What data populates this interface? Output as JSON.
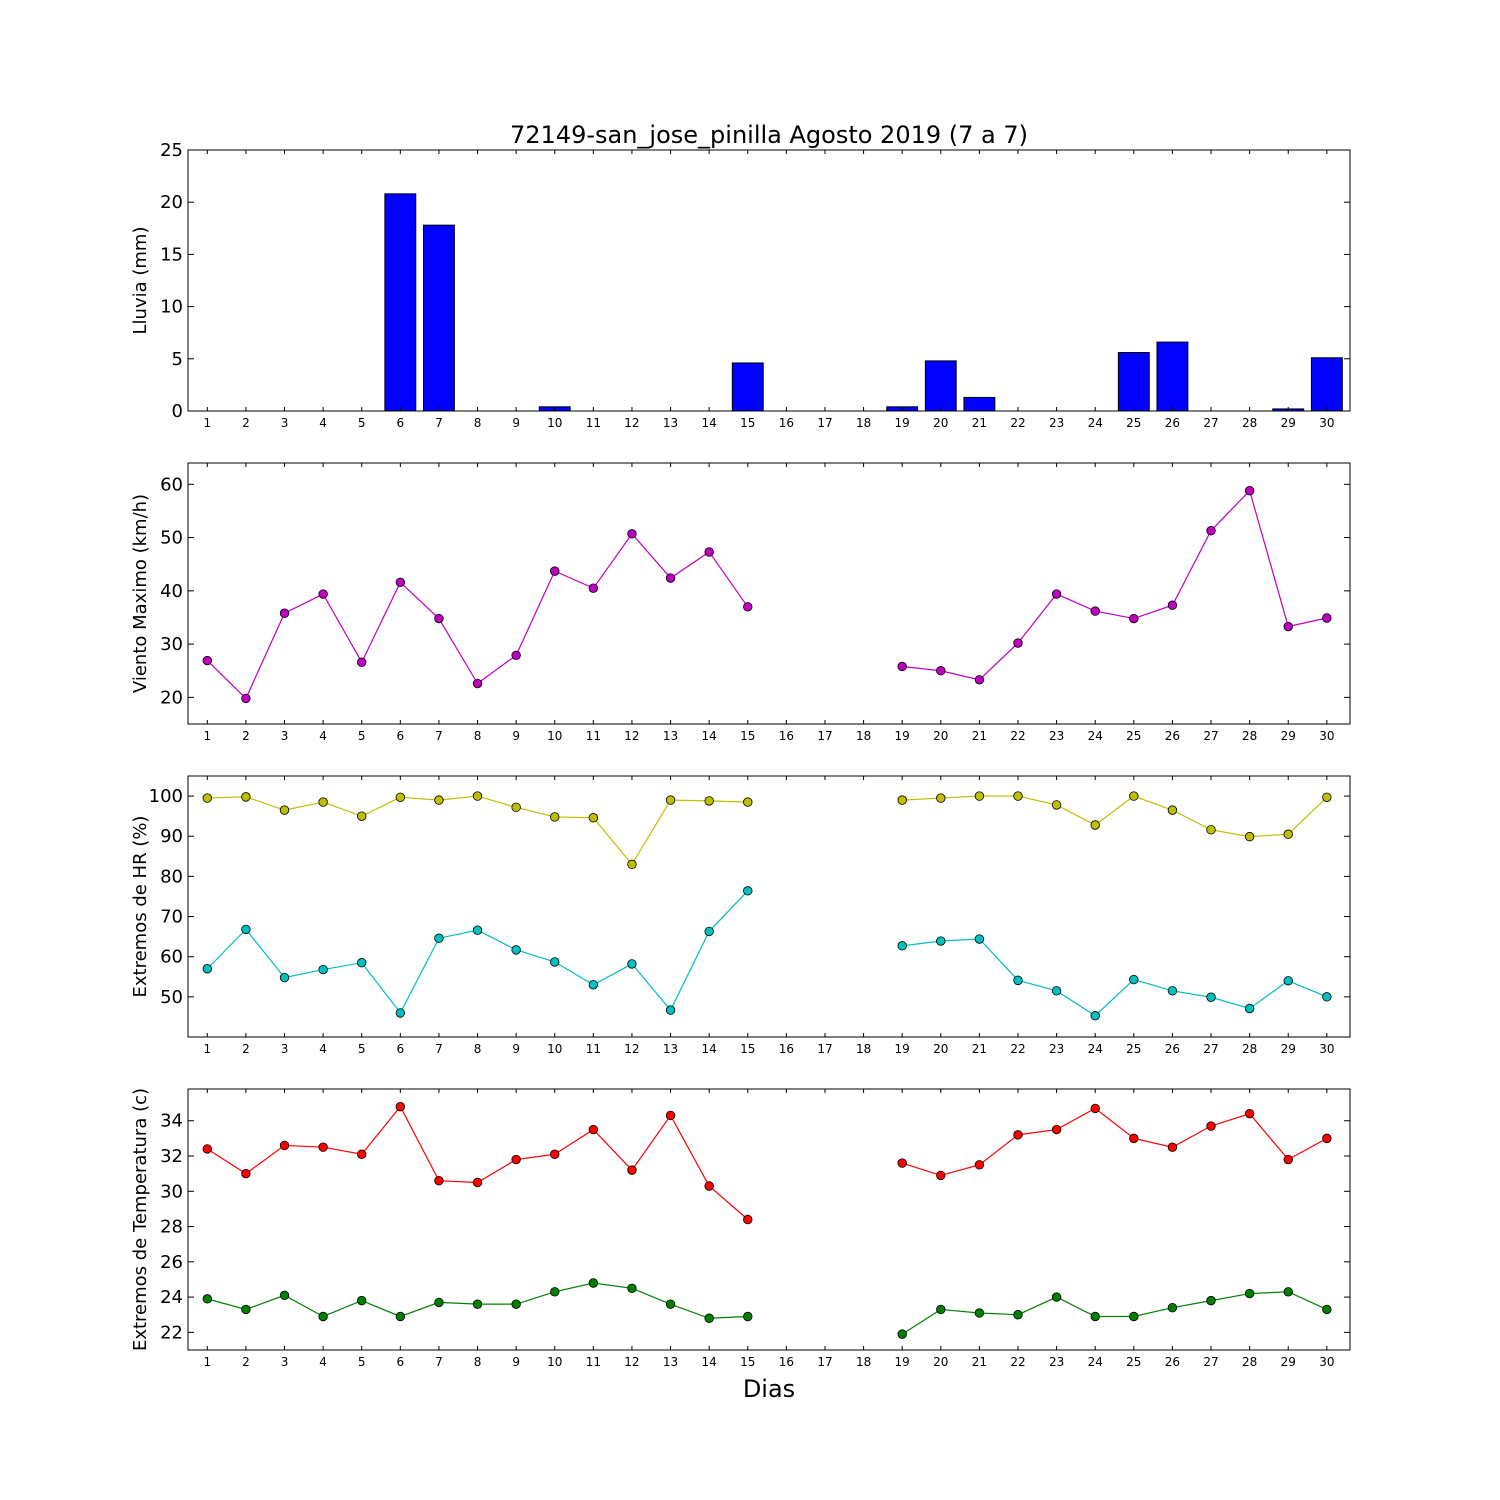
{
  "chart_data": {
    "title": "72149-san_jose_pinilla Agosto 2019  (7 a 7)",
    "xlabel": "Dias",
    "days": [
      1,
      2,
      3,
      4,
      5,
      6,
      7,
      8,
      9,
      10,
      11,
      12,
      13,
      14,
      15,
      16,
      17,
      18,
      19,
      20,
      21,
      22,
      23,
      24,
      25,
      26,
      27,
      28,
      29,
      30
    ],
    "panels": [
      {
        "type": "bar",
        "ylabel": "Lluvia (mm)",
        "ylim": [
          0,
          25
        ],
        "yticks": [
          0,
          5,
          10,
          15,
          20,
          25
        ],
        "series": [
          {
            "color": "#0000ff",
            "values": [
              0,
              0,
              0,
              0,
              0,
              20.8,
              17.8,
              0,
              0,
              0.4,
              0,
              0,
              0,
              0,
              4.6,
              null,
              null,
              null,
              0.4,
              4.8,
              1.3,
              0,
              0,
              0,
              5.6,
              6.6,
              0,
              0,
              0.2,
              5.1
            ]
          }
        ]
      },
      {
        "type": "line",
        "ylabel": "Viento Maximo (km/h)",
        "ylim": [
          15,
          64
        ],
        "yticks": [
          20,
          30,
          40,
          50,
          60
        ],
        "series": [
          {
            "color": "#bf00bf",
            "values": [
              26.9,
              19.8,
              35.8,
              39.4,
              26.6,
              41.6,
              34.8,
              22.6,
              27.9,
              43.7,
              40.5,
              50.7,
              42.4,
              47.3,
              37.0,
              null,
              null,
              null,
              25.8,
              25.0,
              23.3,
              30.2,
              39.4,
              36.2,
              34.8,
              37.3,
              51.3,
              58.8,
              33.3,
              34.9
            ]
          }
        ]
      },
      {
        "type": "line",
        "ylabel": "Extremos de HR (%)",
        "ylim": [
          40,
          105
        ],
        "yticks": [
          50,
          60,
          70,
          80,
          90,
          100
        ],
        "series": [
          {
            "color": "#bfbf00",
            "values": [
              99.5,
              99.8,
              96.5,
              98.5,
              95.0,
              99.7,
              99.0,
              100.0,
              97.2,
              94.8,
              94.6,
              83.0,
              99.0,
              98.8,
              98.5,
              null,
              null,
              null,
              99.0,
              99.5,
              100.0,
              100.0,
              97.8,
              92.8,
              100.0,
              96.5,
              91.6,
              89.9,
              90.5,
              99.7
            ]
          },
          {
            "color": "#00bfbf",
            "values": [
              57.0,
              66.8,
              54.8,
              56.8,
              58.5,
              46.0,
              64.6,
              66.6,
              61.7,
              58.7,
              53.0,
              58.2,
              46.7,
              66.3,
              76.4,
              null,
              null,
              null,
              62.7,
              63.9,
              64.4,
              54.1,
              51.5,
              45.3,
              54.3,
              51.5,
              49.9,
              47.1,
              54.0,
              50.0
            ]
          }
        ]
      },
      {
        "type": "line",
        "ylabel": "Extremos de Temperatura (c)",
        "ylim": [
          21,
          35.8
        ],
        "yticks": [
          22,
          24,
          26,
          28,
          30,
          32,
          34
        ],
        "series": [
          {
            "color": "#ff0000",
            "values": [
              32.4,
              31.0,
              32.6,
              32.5,
              32.1,
              34.8,
              30.6,
              30.5,
              31.8,
              32.1,
              33.5,
              31.2,
              34.3,
              30.3,
              28.4,
              null,
              null,
              null,
              31.6,
              30.9,
              31.5,
              33.2,
              33.5,
              34.7,
              33.0,
              32.5,
              33.7,
              34.4,
              31.8,
              33.0
            ]
          },
          {
            "color": "#008000",
            "values": [
              23.9,
              23.3,
              24.1,
              22.9,
              23.8,
              22.9,
              23.7,
              23.6,
              23.6,
              24.3,
              24.8,
              24.5,
              23.6,
              22.8,
              22.9,
              null,
              null,
              null,
              21.9,
              23.3,
              23.1,
              23.0,
              24.0,
              22.9,
              22.9,
              23.4,
              23.8,
              24.2,
              24.3,
              23.3
            ]
          }
        ]
      }
    ]
  }
}
